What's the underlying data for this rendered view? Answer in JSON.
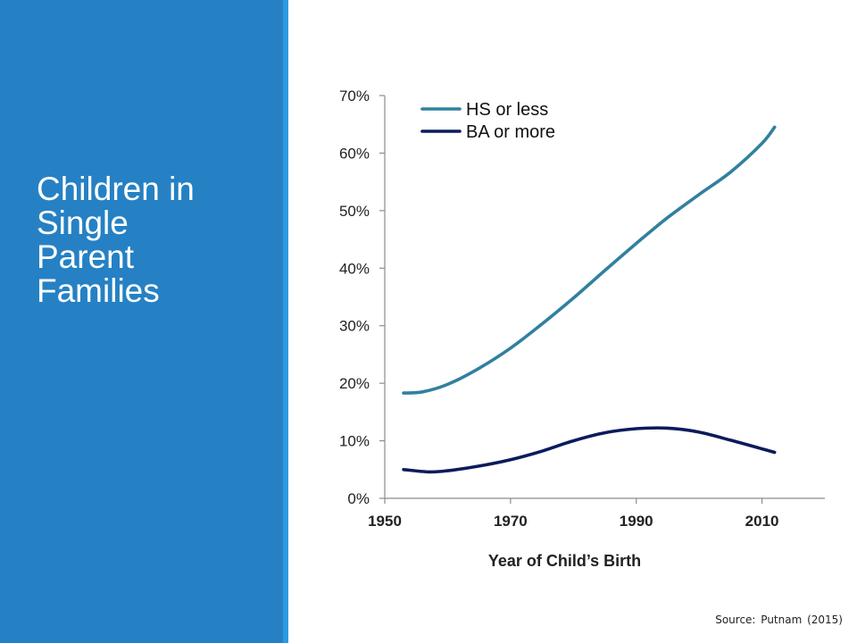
{
  "slide": {
    "title_lines": [
      "Children in",
      "Single",
      "Parent",
      "Families"
    ],
    "source": "Source: Putnam (2015)",
    "colors": {
      "panel": "#2581c4",
      "stripe": "#2b9ae0",
      "title_text": "#ffffff"
    }
  },
  "chart_data": {
    "type": "line",
    "title": "",
    "xlabel": "Year of Child’s Birth",
    "ylabel": "",
    "xlim": [
      1950,
      2020
    ],
    "ylim": [
      0,
      70
    ],
    "x_ticks": [
      1950,
      1970,
      1990,
      2010
    ],
    "x_tick_labels": [
      "1950",
      "1970",
      "1990",
      "2010"
    ],
    "y_ticks": [
      0,
      10,
      20,
      30,
      40,
      50,
      60,
      70
    ],
    "y_tick_labels": [
      "0%",
      "10%",
      "20%",
      "30%",
      "40%",
      "50%",
      "60%",
      "70%"
    ],
    "grid": false,
    "legend_position": "top-left",
    "series": [
      {
        "name": "HS or less",
        "color": "#31809f",
        "x": [
          1953,
          1956,
          1960,
          1965,
          1970,
          1975,
          1980,
          1985,
          1990,
          1995,
          2000,
          2005,
          2010,
          2012
        ],
        "values": [
          18.3,
          18.5,
          19.8,
          22.6,
          26.1,
          30.3,
          34.8,
          39.6,
          44.3,
          48.8,
          52.8,
          56.7,
          61.7,
          64.5
        ]
      },
      {
        "name": "BA or more",
        "color": "#0b1b5c",
        "x": [
          1953,
          1957,
          1960,
          1965,
          1970,
          1975,
          1980,
          1985,
          1990,
          1995,
          2000,
          2005,
          2010,
          2012
        ],
        "values": [
          5.0,
          4.6,
          4.8,
          5.6,
          6.7,
          8.2,
          10.0,
          11.4,
          12.1,
          12.2,
          11.5,
          10.1,
          8.6,
          8.0
        ]
      }
    ]
  }
}
